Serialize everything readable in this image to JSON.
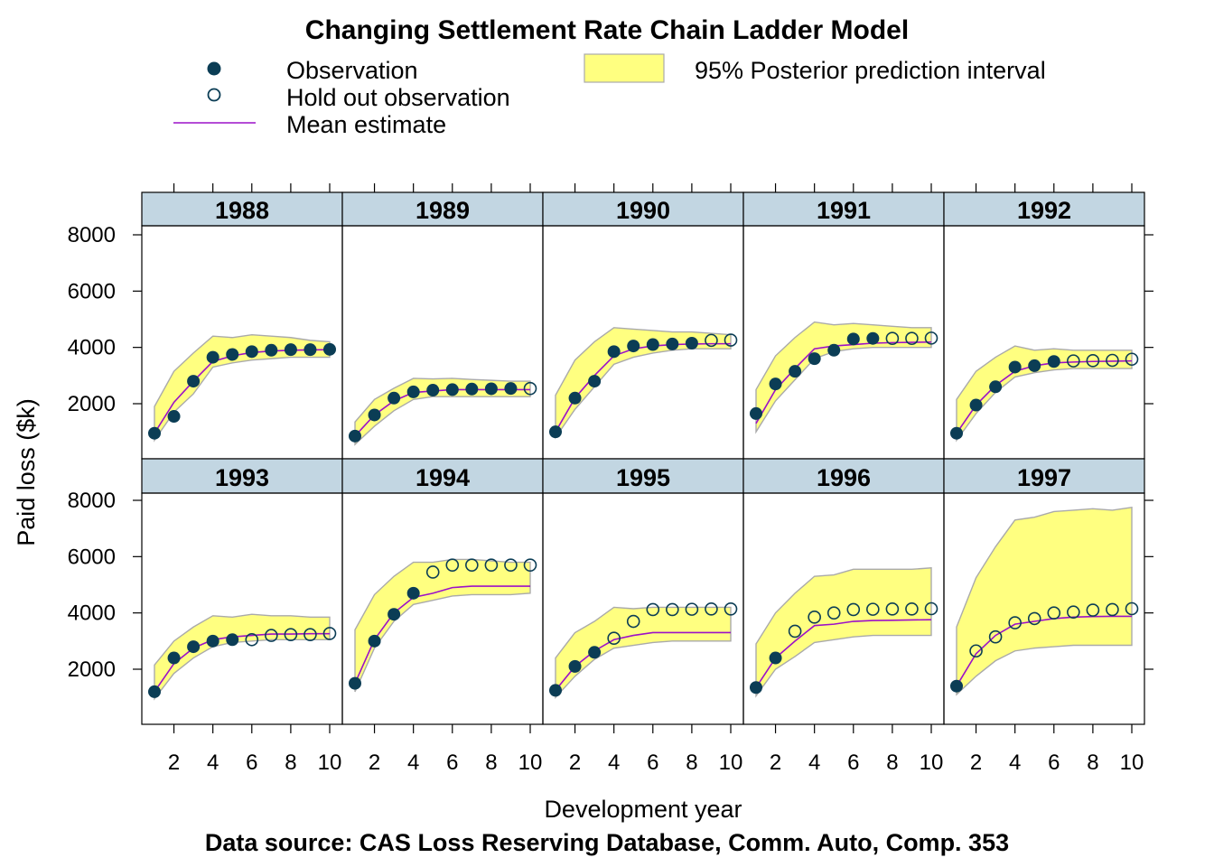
{
  "chart_data": {
    "type": "line",
    "title": "Changing Settlement Rate Chain Ladder Model",
    "xlabel": "Development year",
    "ylabel": "Paid loss ($k)",
    "caption": "Data source: CAS Loss Reserving Database, Comm. Auto, Comp. 353",
    "legend": {
      "placement": "top",
      "observation": "Observation",
      "holdout": "Hold out observation",
      "mean": "Mean estimate",
      "interval": "95% Posterior prediction interval"
    },
    "colors": {
      "point": "#0b3d55",
      "mean": "#9c10c8",
      "band_fill": "#ffff80",
      "band_edge": "#aaaaaa",
      "strip": "#c2d6e2"
    },
    "x": [
      1,
      2,
      3,
      4,
      5,
      6,
      7,
      8,
      9,
      10
    ],
    "x_ticks": [
      2,
      4,
      6,
      8,
      10
    ],
    "xlim": [
      0.5,
      10.6
    ],
    "y_ticks": [
      2000,
      4000,
      6000,
      8000
    ],
    "ylim": [
      250,
      8300
    ],
    "grid": false,
    "panels": [
      {
        "name": "1988",
        "observed": [
          950,
          1550,
          2800,
          3650,
          3750,
          3850,
          3900,
          3920,
          3920,
          3930
        ],
        "holdout": [
          null,
          null,
          null,
          null,
          null,
          null,
          null,
          null,
          null,
          null
        ],
        "mean": [
          950,
          2050,
          2800,
          3500,
          3700,
          3820,
          3870,
          3900,
          3910,
          3920
        ],
        "lower": [
          700,
          1700,
          2350,
          3300,
          3450,
          3550,
          3600,
          3650,
          3650,
          3650
        ],
        "upper": [
          1900,
          3150,
          3800,
          4400,
          4350,
          4450,
          4400,
          4350,
          4250,
          4200
        ]
      },
      {
        "name": "1989",
        "observed": [
          850,
          1600,
          2200,
          2420,
          2480,
          2500,
          2520,
          2530,
          2540,
          null
        ],
        "holdout": [
          null,
          null,
          null,
          null,
          null,
          null,
          null,
          null,
          null,
          2540
        ],
        "mean": [
          850,
          1600,
          2100,
          2400,
          2450,
          2500,
          2500,
          2500,
          2500,
          2500
        ],
        "lower": [
          550,
          1200,
          1750,
          2150,
          2250,
          2250,
          2250,
          2250,
          2250,
          2250
        ],
        "upper": [
          1350,
          2150,
          2550,
          2900,
          2880,
          2900,
          2860,
          2830,
          2800,
          2800
        ]
      },
      {
        "name": "1990",
        "observed": [
          1000,
          2200,
          2800,
          3850,
          4050,
          4100,
          4120,
          4150,
          null,
          null
        ],
        "holdout": [
          null,
          null,
          null,
          null,
          null,
          null,
          null,
          null,
          4250,
          4260
        ],
        "mean": [
          1000,
          2200,
          3000,
          3700,
          3950,
          4050,
          4100,
          4120,
          4130,
          4130
        ],
        "lower": [
          800,
          1800,
          2600,
          3400,
          3650,
          3800,
          3900,
          3950,
          3950,
          3950
        ],
        "upper": [
          2300,
          3550,
          4200,
          4700,
          4650,
          4600,
          4550,
          4550,
          4500,
          4450
        ]
      },
      {
        "name": "1991",
        "observed": [
          1650,
          2700,
          3150,
          3600,
          3900,
          4300,
          4320,
          null,
          null,
          null
        ],
        "holdout": [
          null,
          null,
          null,
          null,
          null,
          null,
          null,
          4320,
          4320,
          4330
        ],
        "mean": [
          1300,
          2500,
          3250,
          3950,
          4050,
          4100,
          4150,
          4170,
          4180,
          4190
        ],
        "lower": [
          1000,
          2100,
          2850,
          3600,
          3850,
          3950,
          4000,
          4000,
          4000,
          4000
        ],
        "upper": [
          2500,
          3700,
          4350,
          4900,
          4800,
          4850,
          4800,
          4750,
          4700,
          4700
        ]
      },
      {
        "name": "1992",
        "observed": [
          950,
          1950,
          2600,
          3300,
          3350,
          3500,
          null,
          null,
          null,
          null
        ],
        "holdout": [
          null,
          null,
          null,
          null,
          null,
          null,
          3520,
          3530,
          3540,
          3580
        ],
        "mean": [
          950,
          1950,
          2650,
          3150,
          3350,
          3450,
          3480,
          3500,
          3510,
          3520
        ],
        "lower": [
          700,
          1650,
          2400,
          2950,
          3100,
          3200,
          3250,
          3250,
          3250,
          3250
        ],
        "upper": [
          2150,
          3150,
          3650,
          4050,
          3900,
          3950,
          3900,
          3900,
          3900,
          3900
        ]
      },
      {
        "name": "1993",
        "observed": [
          1200,
          2400,
          2800,
          3000,
          3050,
          null,
          null,
          null,
          null,
          null
        ],
        "holdout": [
          null,
          null,
          null,
          null,
          null,
          3050,
          3200,
          3230,
          3230,
          3270
        ],
        "mean": [
          1200,
          2200,
          2750,
          3050,
          3150,
          3200,
          3250,
          3250,
          3260,
          3260
        ],
        "lower": [
          950,
          1850,
          2400,
          2800,
          2950,
          3000,
          3050,
          3050,
          3050,
          3050
        ],
        "upper": [
          2150,
          3000,
          3500,
          3900,
          3850,
          3950,
          3900,
          3900,
          3850,
          3850
        ]
      },
      {
        "name": "1994",
        "observed": [
          1500,
          3000,
          3950,
          4700,
          null,
          null,
          null,
          null,
          null,
          null
        ],
        "holdout": [
          null,
          null,
          null,
          null,
          5450,
          5700,
          5700,
          5700,
          5700,
          5700
        ],
        "mean": [
          1500,
          3050,
          4000,
          4550,
          4700,
          4900,
          4950,
          4950,
          4950,
          4950
        ],
        "lower": [
          1200,
          2750,
          3700,
          4300,
          4450,
          4600,
          4650,
          4650,
          4650,
          4700
        ],
        "upper": [
          3400,
          4650,
          5300,
          5800,
          5800,
          5900,
          5900,
          5850,
          5800,
          5800
        ]
      },
      {
        "name": "1995",
        "observed": [
          1250,
          2100,
          2600,
          null,
          null,
          null,
          null,
          null,
          null,
          null
        ],
        "holdout": [
          null,
          null,
          null,
          3100,
          3700,
          4120,
          4120,
          4130,
          4140,
          4140
        ],
        "mean": [
          1250,
          2100,
          2650,
          3050,
          3200,
          3300,
          3300,
          3300,
          3300,
          3300
        ],
        "lower": [
          1000,
          1750,
          2350,
          2750,
          2850,
          2950,
          3000,
          3000,
          3000,
          3000
        ],
        "upper": [
          2400,
          3300,
          3700,
          4200,
          4150,
          4200,
          4200,
          4200,
          4200,
          4200
        ]
      },
      {
        "name": "1996",
        "observed": [
          1350,
          2400,
          null,
          null,
          null,
          null,
          null,
          null,
          null,
          null
        ],
        "holdout": [
          null,
          null,
          3350,
          3850,
          4000,
          4120,
          4130,
          4140,
          4140,
          4150
        ],
        "mean": [
          1350,
          2400,
          3000,
          3550,
          3600,
          3700,
          3730,
          3740,
          3750,
          3760
        ],
        "lower": [
          1050,
          2000,
          2450,
          2950,
          3050,
          3150,
          3200,
          3200,
          3200,
          3200
        ],
        "upper": [
          2900,
          4000,
          4700,
          5300,
          5350,
          5550,
          5550,
          5550,
          5550,
          5600
        ]
      },
      {
        "name": "1997",
        "observed": [
          1400,
          null,
          null,
          null,
          null,
          null,
          null,
          null,
          null,
          null
        ],
        "holdout": [
          null,
          2650,
          3150,
          3650,
          3800,
          4000,
          4030,
          4100,
          4120,
          4150
        ],
        "mean": [
          1400,
          2550,
          3200,
          3600,
          3700,
          3800,
          3850,
          3870,
          3880,
          3880
        ],
        "lower": [
          1100,
          1750,
          2300,
          2650,
          2750,
          2800,
          2850,
          2850,
          2850,
          2850
        ],
        "upper": [
          3500,
          5250,
          6350,
          7300,
          7400,
          7600,
          7650,
          7700,
          7650,
          7750
        ]
      }
    ]
  }
}
